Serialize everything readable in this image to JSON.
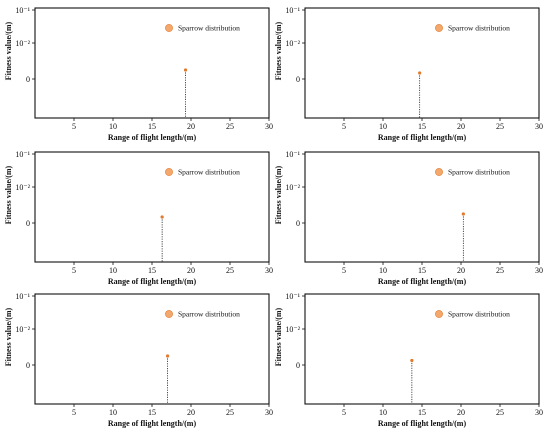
{
  "chart_data": [
    {
      "type": "scatter",
      "xlabel": "Range of flight length/(m)",
      "ylabel": "Fitness value/(m)",
      "x_ticks": [
        "5",
        "10",
        "15",
        "20",
        "25",
        "30"
      ],
      "y_ticks": [
        "10⁻¹",
        "10⁻²",
        "0"
      ],
      "xlim": [
        0,
        30
      ],
      "legend": {
        "label": "Sparrow distribution",
        "position": "top-right"
      },
      "points": [
        {
          "x": 19.3,
          "y": 0.3
        }
      ],
      "marker_color": "#f5a86b",
      "marker_edge_color": "#e07a2e"
    },
    {
      "type": "scatter",
      "xlabel": "Range of flight length/(m)",
      "ylabel": "Fitness value/(m)",
      "x_ticks": [
        "5",
        "10",
        "15",
        "20",
        "25",
        "30"
      ],
      "y_ticks": [
        "10⁻¹",
        "10⁻²",
        "0"
      ],
      "xlim": [
        0,
        30
      ],
      "legend": {
        "label": "Sparrow distribution",
        "position": "top-right"
      },
      "points": [
        {
          "x": 14.7,
          "y": 0.2
        }
      ],
      "marker_color": "#f5a86b",
      "marker_edge_color": "#e07a2e"
    },
    {
      "type": "scatter",
      "xlabel": "Range of flight length/(m)",
      "ylabel": "Fitness value/(m)",
      "x_ticks": [
        "5",
        "10",
        "15",
        "20",
        "25",
        "30"
      ],
      "y_ticks": [
        "10⁻¹",
        "10⁻²",
        "0"
      ],
      "xlim": [
        0,
        30
      ],
      "legend": {
        "label": "Sparrow distribution",
        "position": "top-right"
      },
      "points": [
        {
          "x": 16.3,
          "y": 0.2
        }
      ],
      "marker_color": "#f5a86b",
      "marker_edge_color": "#e07a2e"
    },
    {
      "type": "scatter",
      "xlabel": "Range of flight length/(m)",
      "ylabel": "Fitness value/(m)",
      "x_ticks": [
        "5",
        "10",
        "15",
        "20",
        "25",
        "30"
      ],
      "y_ticks": [
        "10⁻¹",
        "10⁻²",
        "0"
      ],
      "xlim": [
        0,
        30
      ],
      "legend": {
        "label": "Sparrow distribution",
        "position": "top-right"
      },
      "points": [
        {
          "x": 20.3,
          "y": 0.3
        }
      ],
      "marker_color": "#f5a86b",
      "marker_edge_color": "#e07a2e"
    },
    {
      "type": "scatter",
      "xlabel": "Range of flight length/(m)",
      "ylabel": "Fitness value/(m)",
      "x_ticks": [
        "5",
        "10",
        "15",
        "20",
        "25",
        "30"
      ],
      "y_ticks": [
        "10⁻¹",
        "10⁻²",
        "0"
      ],
      "xlim": [
        0,
        30
      ],
      "legend": {
        "label": "Sparrow distribution",
        "position": "top-right"
      },
      "points": [
        {
          "x": 17.0,
          "y": 0.3
        }
      ],
      "marker_color": "#f5a86b",
      "marker_edge_color": "#e07a2e"
    },
    {
      "type": "scatter",
      "xlabel": "Range of flight length/(m)",
      "ylabel": "Fitness value/(m)",
      "x_ticks": [
        "5",
        "10",
        "15",
        "20",
        "25",
        "30"
      ],
      "y_ticks": [
        "10⁻¹",
        "10⁻²",
        "0"
      ],
      "xlim": [
        0,
        30
      ],
      "legend": {
        "label": "Sparrow distribution",
        "position": "top-right"
      },
      "points": [
        {
          "x": 13.7,
          "y": 0.15
        }
      ],
      "marker_color": "#f5a86b",
      "marker_edge_color": "#e07a2e"
    }
  ]
}
